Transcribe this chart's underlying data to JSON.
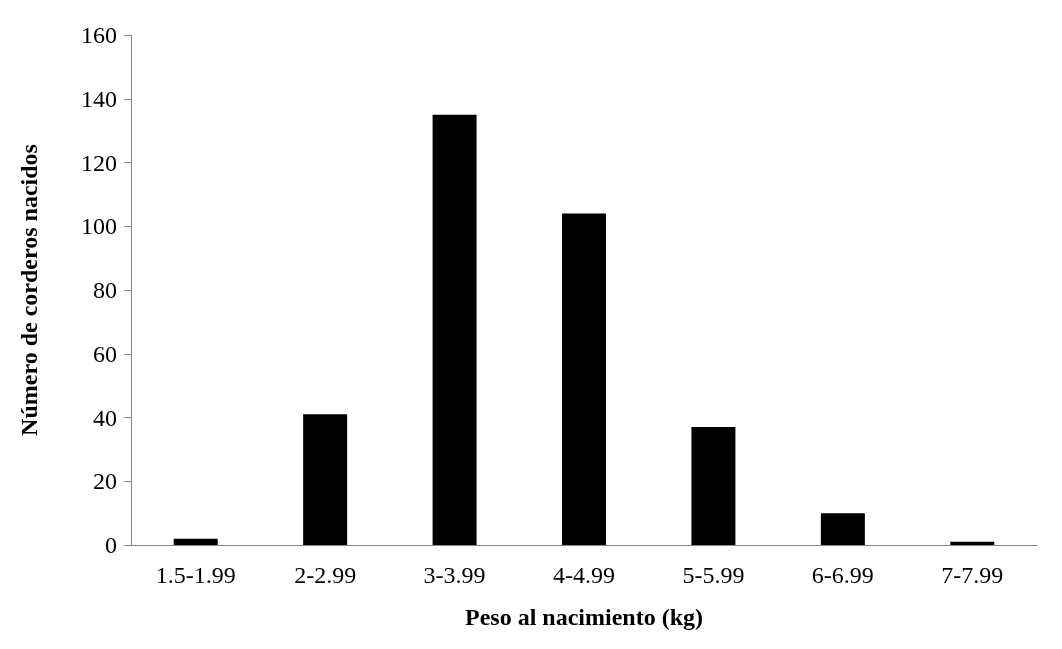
{
  "chart_data": {
    "type": "bar",
    "xlabel": "Peso al nacimiento (kg)",
    "ylabel": "Número de corderos nacidos",
    "categories": [
      "1.5-1.99",
      "2-2.99",
      "3-3.99",
      "4-4.99",
      "5-5.99",
      "6-6.99",
      "7-7.99"
    ],
    "values": [
      2,
      41,
      135,
      104,
      37,
      10,
      1
    ],
    "color": "#000000",
    "ylim": [
      0,
      160
    ],
    "yticks": [
      0,
      20,
      40,
      60,
      80,
      100,
      120,
      140,
      160
    ],
    "grid": false
  }
}
